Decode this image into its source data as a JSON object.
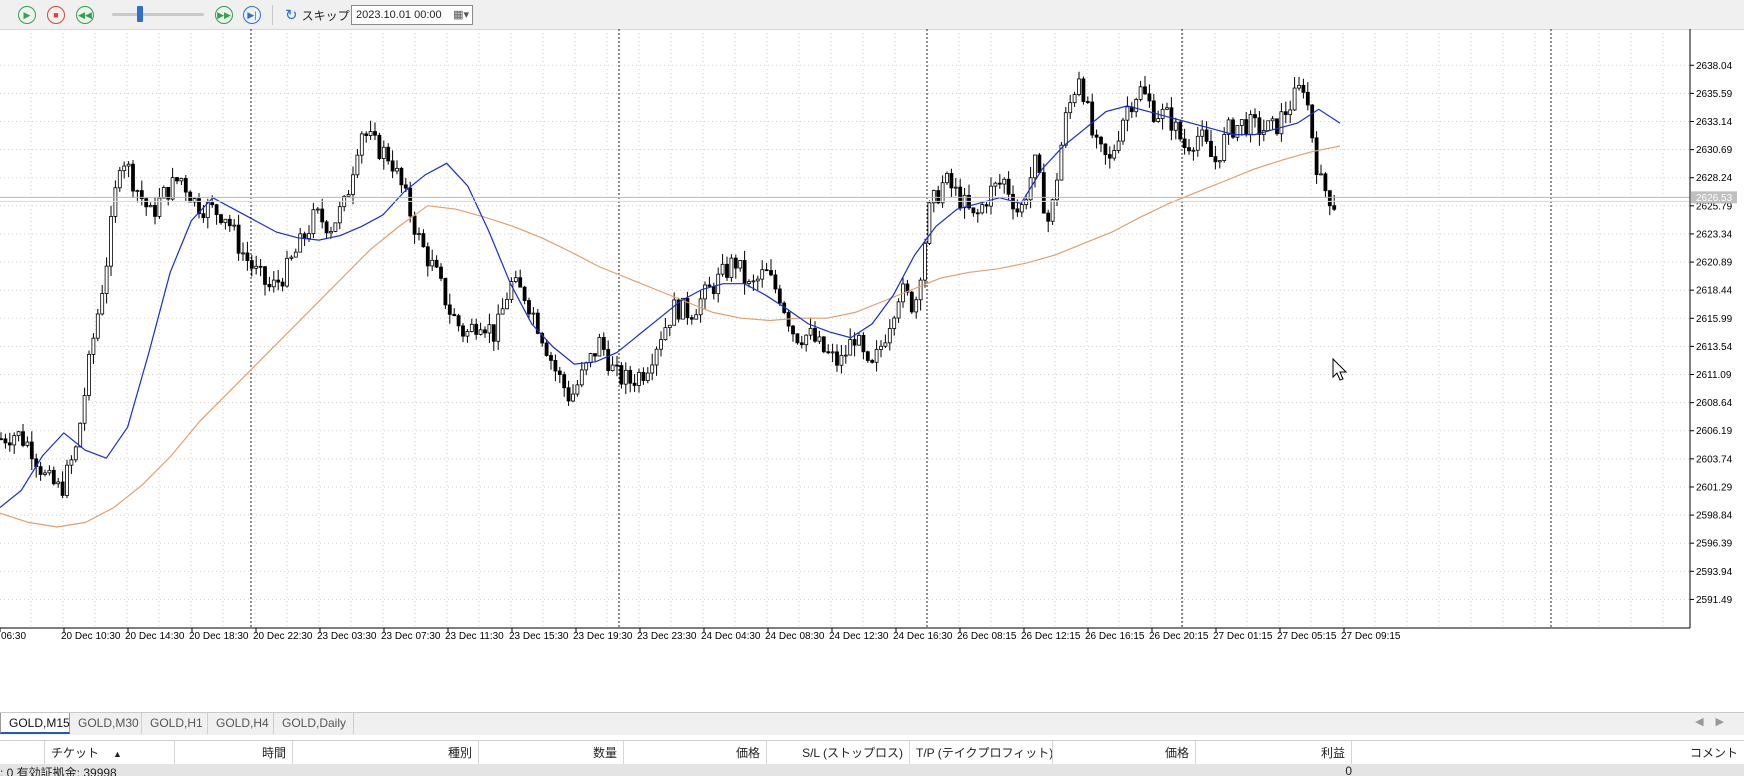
{
  "toolbar": {
    "skip_label": "スキップ",
    "date_value": "2023.10.01 00:00",
    "speed_fraction": 0.3
  },
  "chart_data": {
    "type": "candlestick",
    "symbol": "GOLD",
    "timeframe": "M15",
    "price_ticks": [
      "2638.04",
      "2635.59",
      "2633.14",
      "2630.69",
      "2628.24",
      "2625.79",
      "2623.34",
      "2620.89",
      "2618.44",
      "2615.99",
      "2613.54",
      "2611.09",
      "2608.64",
      "2606.19",
      "2603.74",
      "2601.29",
      "2598.84",
      "2596.39",
      "2593.94",
      "2591.49"
    ],
    "current_price": "2626.53",
    "ylim": [
      2589.0,
      2641.2
    ],
    "time_labels": [
      "06:30",
      "20 Dec 10:30",
      "20 Dec 14:30",
      "20 Dec 18:30",
      "20 Dec 22:30",
      "23 Dec 03:30",
      "23 Dec 07:30",
      "23 Dec 11:30",
      "23 Dec 15:30",
      "23 Dec 19:30",
      "23 Dec 23:30",
      "24 Dec 04:30",
      "24 Dec 08:30",
      "24 Dec 12:30",
      "24 Dec 16:30",
      "26 Dec 08:15",
      "26 Dec 12:15",
      "26 Dec 16:15",
      "26 Dec 20:15",
      "27 Dec 01:15",
      "27 Dec 05:15",
      "27 Dec 09:15"
    ],
    "price_path": [
      2605.5,
      2606.0,
      2604.8,
      2602.0,
      2601.0,
      2604.5,
      2613.0,
      2620.5,
      2630.5,
      2627.5,
      2625.0,
      2627.0,
      2628.3,
      2626.0,
      2625.5,
      2625.0,
      2622.0,
      2620.0,
      2618.5,
      2620.0,
      2622.5,
      2625.0,
      2624.0,
      2626.0,
      2632.5,
      2631.0,
      2630.0,
      2626.5,
      2622.5,
      2620.0,
      2616.5,
      2614.5,
      2616.0,
      2614.5,
      2619.0,
      2618.0,
      2615.0,
      2611.5,
      2609.0,
      2611.5,
      2614.0,
      2611.0,
      2610.5,
      2611.5,
      2614.5,
      2617.0,
      2616.5,
      2618.0,
      2619.5,
      2621.0,
      2618.5,
      2620.0,
      2618.0,
      2614.5,
      2614.5,
      2613.0,
      2612.0,
      2614.5,
      2611.0,
      2614.5,
      2618.5,
      2617.0,
      2625.5,
      2628.0,
      2626.5,
      2624.5,
      2627.0,
      2628.0,
      2625.0,
      2629.5,
      2624.0,
      2633.0,
      2637.5,
      2631.0,
      2629.5,
      2634.0,
      2636.0,
      2634.0,
      2633.5,
      2631.0,
      2632.0,
      2629.5,
      2632.5,
      2633.0,
      2632.5,
      2632.5,
      2634.5,
      2636.5,
      2628.0,
      2626.0
    ],
    "ma_fast": [
      2599.5,
      2601.0,
      2604.0,
      2606.0,
      2604.5,
      2603.8,
      2606.5,
      2613.0,
      2620.0,
      2624.5,
      2626.5,
      2625.5,
      2624.5,
      2623.5,
      2623.0,
      2622.8,
      2623.2,
      2624.0,
      2625.0,
      2627.0,
      2628.5,
      2629.5,
      2627.5,
      2623.5,
      2619.0,
      2615.5,
      2613.5,
      2612.0,
      2612.2,
      2613.0,
      2614.5,
      2616.0,
      2617.5,
      2618.5,
      2619.0,
      2619.0,
      2618.0,
      2616.8,
      2615.5,
      2614.8,
      2614.3,
      2615.5,
      2618.0,
      2621.5,
      2624.0,
      2625.5,
      2626.0,
      2626.5,
      2626.0,
      2629.0,
      2631.0,
      2632.5,
      2634.0,
      2634.5,
      2634.0,
      2633.5,
      2633.0,
      2632.5,
      2632.0,
      2632.0,
      2632.5,
      2633.0,
      2634.2,
      2633.0
    ],
    "ma_slow": [
      2599.0,
      2598.2,
      2597.8,
      2598.2,
      2599.5,
      2601.5,
      2604.0,
      2607.0,
      2609.5,
      2612.0,
      2614.5,
      2617.0,
      2619.5,
      2622.0,
      2624.0,
      2625.8,
      2625.5,
      2624.8,
      2624.0,
      2623.0,
      2621.8,
      2620.5,
      2619.5,
      2618.5,
      2617.5,
      2616.5,
      2616.0,
      2615.8,
      2616.0,
      2616.0,
      2616.5,
      2617.5,
      2618.5,
      2619.5,
      2620.0,
      2620.3,
      2620.8,
      2621.5,
      2622.5,
      2623.5,
      2624.8,
      2626.0,
      2627.0,
      2628.0,
      2629.0,
      2629.8,
      2630.5,
      2631.0
    ],
    "legend": "none",
    "grid": true
  },
  "tabs": [
    {
      "label": "GOLD,M15",
      "active": true
    },
    {
      "label": "GOLD,M30",
      "active": false
    },
    {
      "label": "GOLD,H1",
      "active": false
    },
    {
      "label": "GOLD,H4",
      "active": false
    },
    {
      "label": "GOLD,Daily",
      "active": false
    }
  ],
  "table": {
    "columns": {
      "ticket": "チケット",
      "time": "時間",
      "type": "種別",
      "volume": "数量",
      "price": "価格",
      "sl": "S/L (ストップロス)",
      "tp": "T/P (テイクプロフィット)",
      "price2": "価格",
      "profit": "利益",
      "comment": "コメント"
    },
    "summary_text": ": 0  有効証拠金: 39998",
    "profit_value": "0"
  }
}
